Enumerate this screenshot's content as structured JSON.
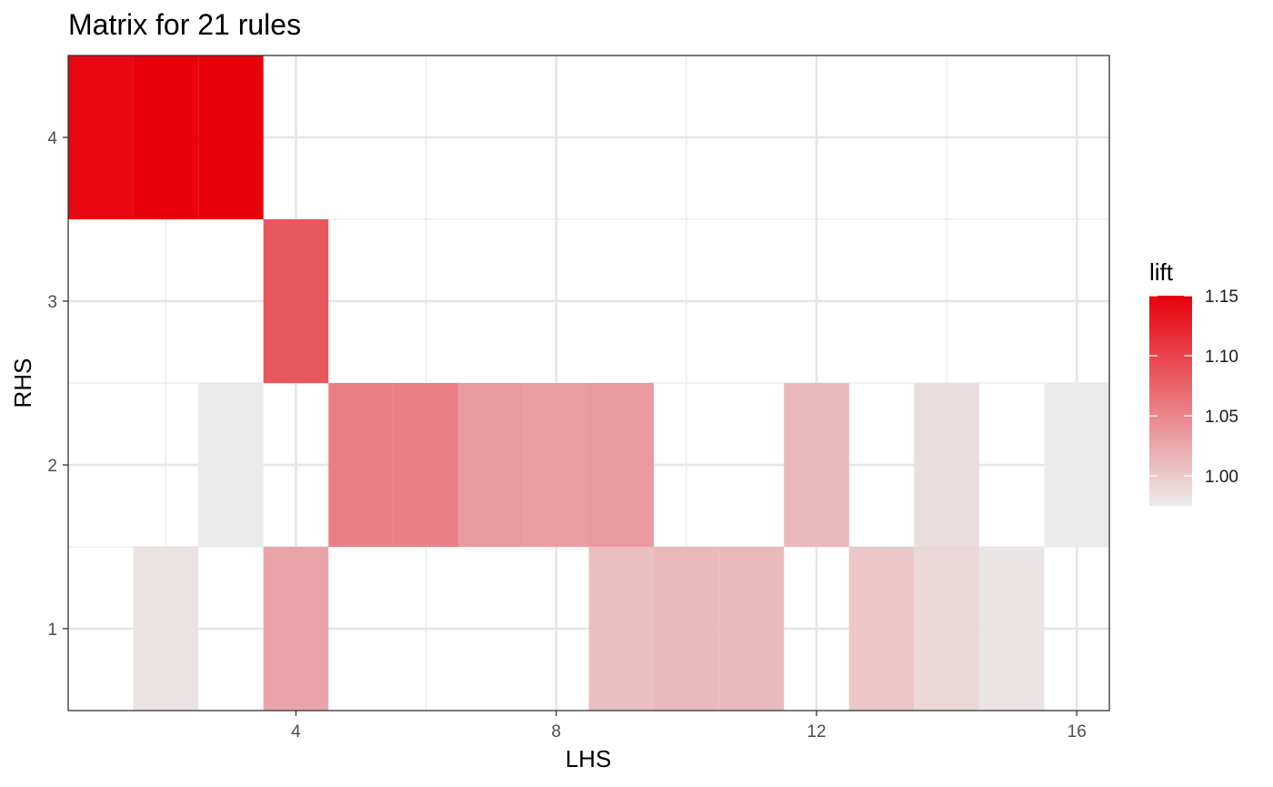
{
  "chart_data": {
    "type": "heatmap",
    "title": "Matrix for 21 rules",
    "xlabel": "LHS",
    "ylabel": "RHS",
    "xlim": [
      0.5,
      16.5
    ],
    "ylim": [
      0.5,
      4.5
    ],
    "x_ticks": [
      4,
      8,
      12,
      16
    ],
    "y_ticks": [
      1,
      2,
      3,
      4
    ],
    "legend": {
      "title": "lift",
      "position": "right",
      "range": [
        0.975,
        1.15
      ],
      "ticks": [
        1.0,
        1.05,
        1.1,
        1.15
      ],
      "tick_labels": [
        "1.00",
        "1.05",
        "1.10",
        "1.15"
      ],
      "low_color": "#EBEBEB",
      "high_color": "#E8000B"
    },
    "cells": [
      {
        "lhs": 1,
        "rhs": 4,
        "lift": 1.145
      },
      {
        "lhs": 2,
        "rhs": 4,
        "lift": 1.15
      },
      {
        "lhs": 3,
        "rhs": 4,
        "lift": 1.15
      },
      {
        "lhs": 4,
        "rhs": 3,
        "lift": 1.085
      },
      {
        "lhs": 3,
        "rhs": 2,
        "lift": 0.975
      },
      {
        "lhs": 5,
        "rhs": 2,
        "lift": 1.055
      },
      {
        "lhs": 6,
        "rhs": 2,
        "lift": 1.055
      },
      {
        "lhs": 7,
        "rhs": 2,
        "lift": 1.035
      },
      {
        "lhs": 8,
        "rhs": 2,
        "lift": 1.033
      },
      {
        "lhs": 9,
        "rhs": 2,
        "lift": 1.035
      },
      {
        "lhs": 12,
        "rhs": 2,
        "lift": 1.012
      },
      {
        "lhs": 14,
        "rhs": 2,
        "lift": 0.985
      },
      {
        "lhs": 16,
        "rhs": 2,
        "lift": 0.975
      },
      {
        "lhs": 2,
        "rhs": 1,
        "lift": 0.982
      },
      {
        "lhs": 4,
        "rhs": 1,
        "lift": 1.028
      },
      {
        "lhs": 9,
        "rhs": 1,
        "lift": 1.008
      },
      {
        "lhs": 10,
        "rhs": 1,
        "lift": 1.012
      },
      {
        "lhs": 11,
        "rhs": 1,
        "lift": 1.012
      },
      {
        "lhs": 13,
        "rhs": 1,
        "lift": 1.002
      },
      {
        "lhs": 14,
        "rhs": 1,
        "lift": 0.99
      },
      {
        "lhs": 15,
        "rhs": 1,
        "lift": 0.98
      }
    ]
  }
}
